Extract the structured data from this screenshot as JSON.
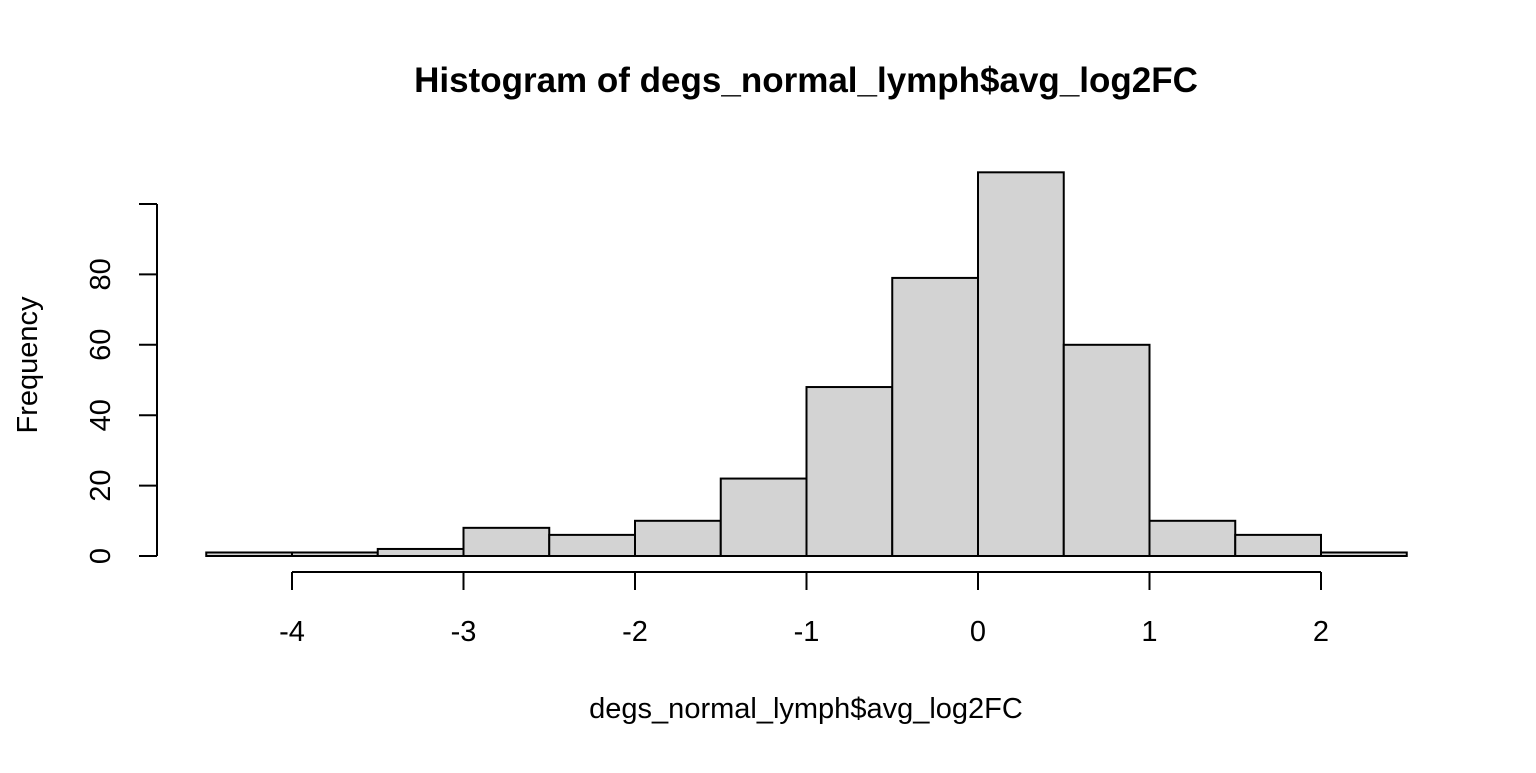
{
  "chart_data": {
    "type": "bar",
    "title": "Histogram of degs_normal_lymph$avg_log2FC",
    "xlabel": "degs_normal_lymph$avg_log2FC",
    "ylabel": "Frequency",
    "bin_edges": [
      -4.5,
      -4.0,
      -3.5,
      -3.0,
      -2.5,
      -2.0,
      -1.5,
      -1.0,
      -0.5,
      0.0,
      0.5,
      1.0,
      1.5,
      2.0,
      2.5
    ],
    "values": [
      1,
      1,
      2,
      8,
      6,
      10,
      22,
      48,
      79,
      109,
      60,
      10,
      6,
      1
    ],
    "xlim": [
      -4.5,
      2.5
    ],
    "ylim": [
      0,
      109
    ],
    "x_ticks": [
      -4,
      -3,
      -2,
      -1,
      0,
      1,
      2
    ],
    "x_tick_labels": [
      "-4",
      "-3",
      "-2",
      "-1",
      "0",
      "1",
      "2"
    ],
    "y_ticks": [
      0,
      20,
      40,
      60,
      80,
      100
    ],
    "y_tick_labels": [
      "0",
      "20",
      "40",
      "60",
      "80",
      ""
    ],
    "grid": false,
    "bar_fill": "#d3d3d3",
    "bar_stroke": "#000000"
  }
}
